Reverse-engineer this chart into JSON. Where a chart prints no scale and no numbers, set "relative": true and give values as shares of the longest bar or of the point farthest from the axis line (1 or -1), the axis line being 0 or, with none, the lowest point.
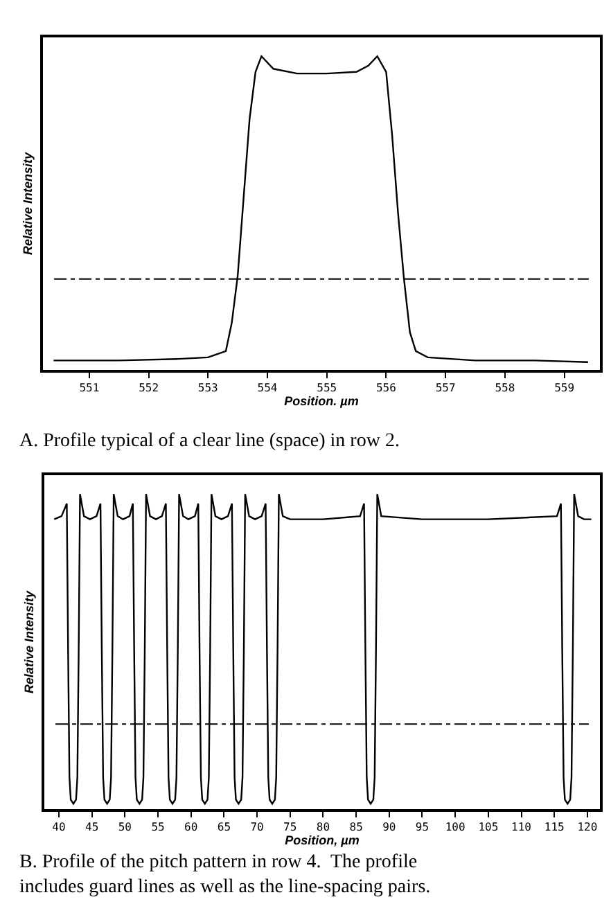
{
  "chart_data": [
    {
      "type": "line",
      "relative": true,
      "xlabel": "Position. µm",
      "ylabel": "Relative Intensity",
      "xlim": [
        550.22,
        559.6
      ],
      "xticks": [
        551,
        552,
        553,
        554,
        555,
        556,
        557,
        558,
        559
      ],
      "tick_labels": "x",
      "marker": "none",
      "line_style": "solid",
      "series": [
        {
          "color": "#000000",
          "x": [
            550.4,
            551.5,
            552.5,
            553.0,
            553.3,
            553.4,
            553.5,
            553.6,
            553.7,
            553.8,
            553.9,
            554.1,
            554.5,
            555.0,
            555.5,
            555.7,
            555.85,
            556.0,
            556.1,
            556.2,
            556.3,
            556.4,
            556.5,
            556.7,
            557.5,
            558.5,
            559.4
          ],
          "values": [
            0.03,
            0.03,
            0.035,
            0.04,
            0.06,
            0.15,
            0.3,
            0.55,
            0.8,
            0.95,
            1.0,
            0.96,
            0.945,
            0.945,
            0.95,
            0.97,
            1.0,
            0.95,
            0.75,
            0.5,
            0.29,
            0.12,
            0.06,
            0.04,
            0.03,
            0.03,
            0.025
          ]
        }
      ],
      "ref_lines": [
        {
          "axis": "y",
          "value": 0.29,
          "color": "#000000",
          "line_style": "dashed"
        }
      ],
      "annotations": [
        "A. Profile typical of a clear line (space) in row 2."
      ]
    },
    {
      "type": "line",
      "relative": true,
      "xlabel": "Position, µm",
      "ylabel": "Relative Intensity",
      "xlim": [
        37.8,
        121.9
      ],
      "xticks": [
        40,
        45,
        50,
        55,
        60,
        65,
        70,
        75,
        80,
        85,
        90,
        95,
        100,
        105,
        110,
        115,
        120
      ],
      "tick_labels": "x",
      "marker": "none",
      "line_style": "solid",
      "series": [
        {
          "color": "#000000",
          "x": [
            39.3,
            40.4,
            41.2,
            41.4,
            41.6,
            41.8,
            42.2,
            42.6,
            42.8,
            43.0,
            43.2,
            43.8,
            44.7,
            45.7,
            46.3,
            46.5,
            46.7,
            46.9,
            47.3,
            47.7,
            47.9,
            48.1,
            48.3,
            48.9,
            49.7,
            50.7,
            51.2,
            51.4,
            51.6,
            51.8,
            52.2,
            52.6,
            52.8,
            53.0,
            53.2,
            53.8,
            54.7,
            55.6,
            56.2,
            56.4,
            56.6,
            56.8,
            57.2,
            57.6,
            57.8,
            58.0,
            58.2,
            58.8,
            59.6,
            60.6,
            61.1,
            61.3,
            61.5,
            61.7,
            62.1,
            62.5,
            62.7,
            62.9,
            63.1,
            63.7,
            64.6,
            65.6,
            66.2,
            66.4,
            66.6,
            66.8,
            67.2,
            67.6,
            67.8,
            68.0,
            68.2,
            68.8,
            69.7,
            70.7,
            71.3,
            71.5,
            71.7,
            71.9,
            72.3,
            72.7,
            72.9,
            73.1,
            73.3,
            73.9,
            75.0,
            80.0,
            85.6,
            86.2,
            86.4,
            86.6,
            86.8,
            87.2,
            87.6,
            87.8,
            88.0,
            88.2,
            88.8,
            95.0,
            105.0,
            115.4,
            116.0,
            116.2,
            116.4,
            116.6,
            117.0,
            117.4,
            117.6,
            117.8,
            118.0,
            118.6,
            119.5,
            120.6
          ],
          "values": [
            0.92,
            0.93,
            0.97,
            0.5,
            0.1,
            0.03,
            0.017,
            0.03,
            0.1,
            0.5,
            1.0,
            0.93,
            0.92,
            0.93,
            0.97,
            0.5,
            0.1,
            0.03,
            0.017,
            0.03,
            0.1,
            0.5,
            1.0,
            0.93,
            0.92,
            0.93,
            0.97,
            0.5,
            0.1,
            0.03,
            0.017,
            0.03,
            0.1,
            0.5,
            1.0,
            0.93,
            0.92,
            0.93,
            0.97,
            0.5,
            0.1,
            0.03,
            0.017,
            0.03,
            0.1,
            0.5,
            1.0,
            0.93,
            0.92,
            0.93,
            0.97,
            0.5,
            0.1,
            0.03,
            0.017,
            0.03,
            0.1,
            0.5,
            1.0,
            0.93,
            0.92,
            0.93,
            0.97,
            0.5,
            0.1,
            0.03,
            0.017,
            0.03,
            0.1,
            0.5,
            1.0,
            0.93,
            0.92,
            0.93,
            0.97,
            0.5,
            0.1,
            0.03,
            0.017,
            0.03,
            0.1,
            0.5,
            1.0,
            0.93,
            0.92,
            0.92,
            0.93,
            0.97,
            0.5,
            0.1,
            0.03,
            0.017,
            0.03,
            0.1,
            0.5,
            1.0,
            0.93,
            0.92,
            0.92,
            0.93,
            0.97,
            0.5,
            0.1,
            0.03,
            0.017,
            0.03,
            0.1,
            0.5,
            1.0,
            0.93,
            0.92,
            0.92
          ]
        }
      ],
      "ref_lines": [
        {
          "axis": "y",
          "value": 0.27,
          "color": "#000000",
          "line_style": "dashed"
        }
      ],
      "annotations": [
        "B. Profile of the pitch pattern in row 4.  The profile includes guard lines as well as the line-spacing pairs."
      ]
    }
  ]
}
